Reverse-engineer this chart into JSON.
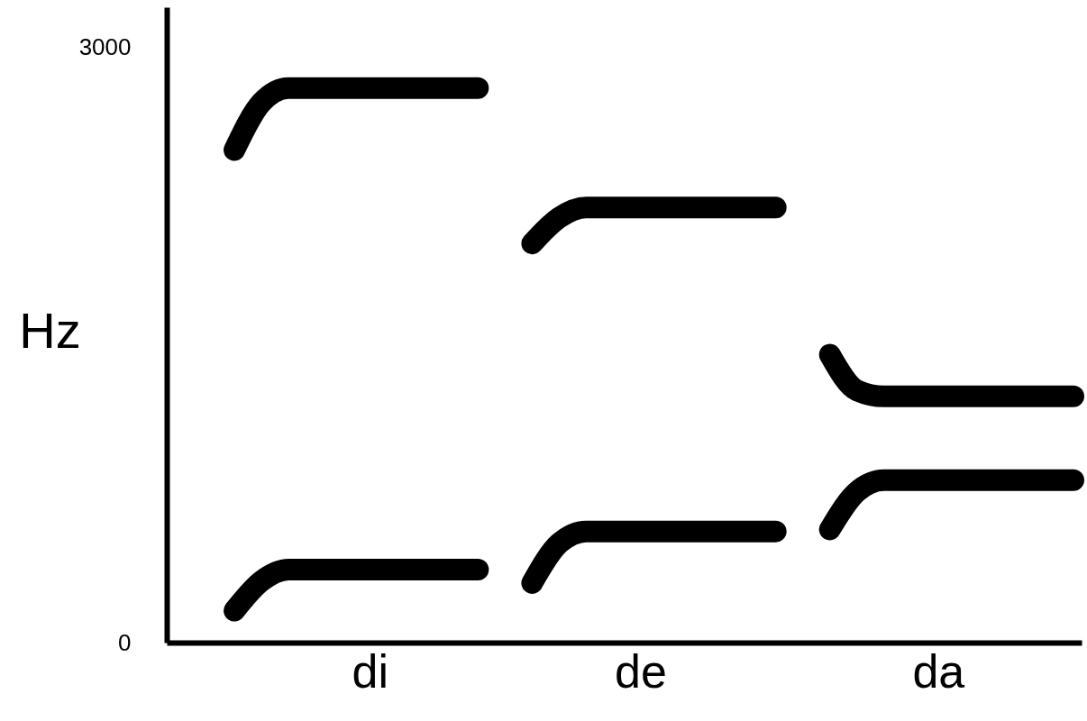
{
  "chart_data": {
    "type": "line",
    "ylabel": "Hz",
    "ylim": [
      0,
      3200
    ],
    "yticks": [
      0,
      3000
    ],
    "categories": [
      null,
      null,
      null,
      null,
      null,
      "di",
      null,
      null,
      null,
      null,
      null,
      null,
      null,
      null,
      null,
      "de",
      null,
      null,
      null,
      null,
      null,
      null,
      null,
      null,
      null,
      null,
      "da",
      null,
      null,
      null,
      null,
      null
    ],
    "series": [
      {
        "color": "#000000",
        "values": [
          2481,
          2720,
          2793,
          2793,
          2793,
          2793,
          2793,
          2793,
          2793,
          2793,
          null,
          null,
          null,
          null,
          null,
          null,
          null,
          null,
          null,
          null,
          null,
          null,
          null,
          null,
          null,
          null,
          null,
          null,
          null,
          null,
          null,
          null
        ]
      },
      {
        "color": "#000000",
        "values": [
          161,
          310,
          368,
          368,
          368,
          368,
          368,
          368,
          368,
          368,
          null,
          null,
          null,
          null,
          null,
          null,
          null,
          null,
          null,
          null,
          null,
          null,
          null,
          null,
          null,
          null,
          null,
          null,
          null,
          null,
          null,
          null
        ]
      },
      {
        "color": "#000000",
        "values": [
          null,
          null,
          null,
          null,
          null,
          null,
          null,
          null,
          null,
          null,
          null,
          2010,
          2140,
          2191,
          2191,
          2191,
          2191,
          2191,
          2191,
          2191,
          2191,
          null,
          null,
          null,
          null,
          null,
          null,
          null,
          null,
          null,
          null,
          null
        ]
      },
      {
        "color": "#000000",
        "values": [
          null,
          null,
          null,
          null,
          null,
          null,
          null,
          null,
          null,
          null,
          null,
          300,
          500,
          560,
          560,
          560,
          560,
          560,
          560,
          560,
          560,
          null,
          null,
          null,
          null,
          null,
          null,
          null,
          null,
          null,
          null,
          null
        ]
      },
      {
        "color": "#000000",
        "values": [
          null,
          null,
          null,
          null,
          null,
          null,
          null,
          null,
          null,
          null,
          null,
          null,
          null,
          null,
          null,
          null,
          null,
          null,
          null,
          null,
          null,
          null,
          1450,
          1270,
          1240,
          1240,
          1240,
          1240,
          1240,
          1240,
          1240,
          1240
        ]
      },
      {
        "color": "#000000",
        "values": [
          null,
          null,
          null,
          null,
          null,
          null,
          null,
          null,
          null,
          null,
          null,
          null,
          null,
          null,
          null,
          null,
          null,
          null,
          null,
          null,
          null,
          null,
          570,
          760,
          818,
          818,
          818,
          818,
          818,
          818,
          818,
          818
        ]
      }
    ],
    "grid": false
  }
}
